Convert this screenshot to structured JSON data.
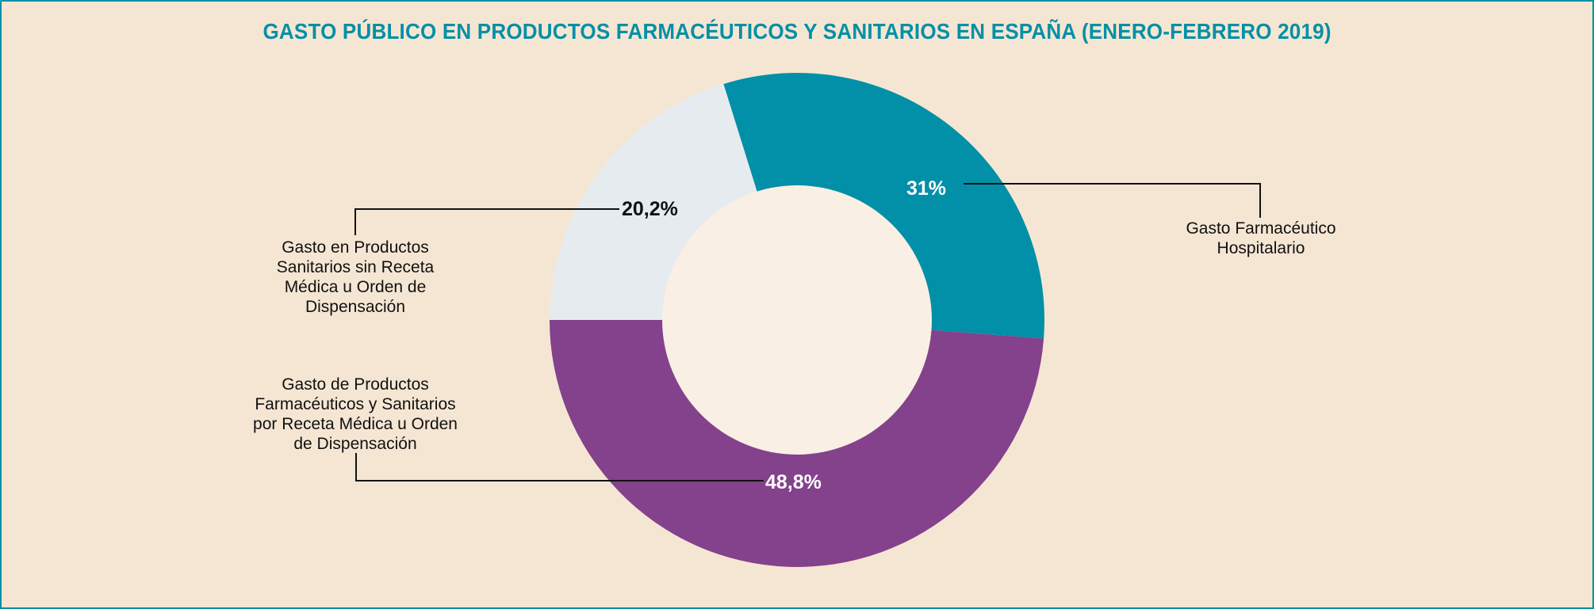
{
  "title": "GASTO PÚBLICO EN PRODUCTOS FARMACÉUTICOS Y SANITARIOS EN ESPAÑA (ENERO-FEBRERO 2019)",
  "colors": {
    "background": "#F5E6D3",
    "border": "#0390A6",
    "title": "#0390A6",
    "inner": "#F9EFE4"
  },
  "chart_data": {
    "type": "pie",
    "subtype": "donut",
    "title": "GASTO PÚBLICO EN PRODUCTOS FARMACÉUTICOS Y SANITARIOS EN ESPAÑA (ENERO-FEBRERO 2019)",
    "categories": [
      "Gasto Farmacéutico Hospitalario",
      "Gasto de Productos Farmacéuticos y Sanitarios por Receta Médica u Orden de Dispensación",
      "Gasto en Productos Sanitarios sin Receta Médica u Orden de Dispensación"
    ],
    "values": [
      31,
      48.8,
      20.2
    ],
    "unit": "%",
    "legend": "none (callout labels)",
    "segments": [
      {
        "name": "Gasto Farmacéutico Hospitalario",
        "value": 31,
        "value_label": "31%",
        "color": "#0190A7",
        "value_text_color": "#FFFFFF",
        "label_lines": [
          "Gasto Farmacéutico",
          "Hospitalario"
        ]
      },
      {
        "name": "Gasto de Productos Farmacéuticos y Sanitarios por Receta Médica u Orden de Dispensación",
        "value": 48.8,
        "value_label": "48,8%",
        "color": "#84418C",
        "value_text_color": "#FFFFFF",
        "label_lines": [
          "Gasto de Productos",
          "Farmacéuticos y Sanitarios",
          "por Receta Médica u Orden",
          "de Dispensación"
        ]
      },
      {
        "name": "Gasto en Productos Sanitarios sin Receta Médica u Orden de Dispensación",
        "value": 20.2,
        "value_label": "20,2%",
        "color": "#E6EBEF",
        "value_text_color": "#111111",
        "label_lines": [
          "Gasto en Productos",
          "Sanitarios sin Receta",
          "Médica u Orden de",
          "Dispensación"
        ]
      }
    ]
  }
}
